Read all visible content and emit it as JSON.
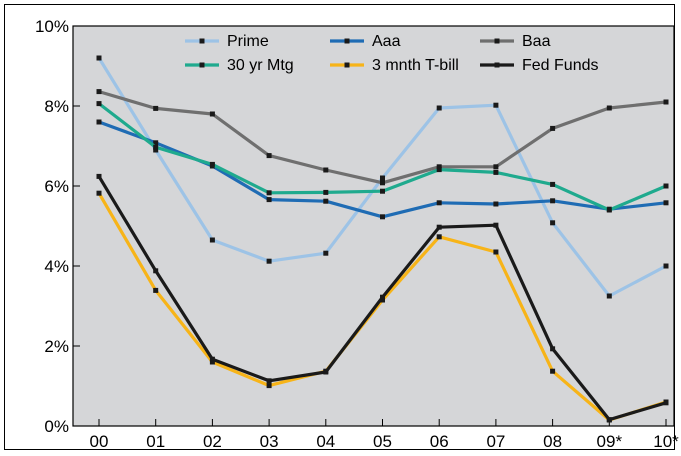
{
  "chart_data": {
    "type": "line",
    "title": "",
    "xlabel": "",
    "ylabel": "",
    "categories": [
      "00",
      "01",
      "02",
      "03",
      "04",
      "05",
      "06",
      "07",
      "08",
      "09*",
      "10*"
    ],
    "y_ticks": [
      "0%",
      "2%",
      "4%",
      "6%",
      "8%",
      "10%"
    ],
    "ylim": [
      0,
      10
    ],
    "grid": false,
    "legend_position": "top",
    "series": [
      {
        "name": "Prime",
        "color": "#9dc3e6",
        "values": [
          9.2,
          6.9,
          4.65,
          4.12,
          4.32,
          6.2,
          7.95,
          8.02,
          5.08,
          3.25,
          4.0
        ]
      },
      {
        "name": "Aaa",
        "color": "#1f6cb4",
        "values": [
          7.6,
          7.08,
          6.5,
          5.66,
          5.62,
          5.23,
          5.58,
          5.55,
          5.63,
          5.42,
          5.58
        ]
      },
      {
        "name": "Baa",
        "color": "#6f6f6f",
        "values": [
          8.36,
          7.94,
          7.8,
          6.76,
          6.4,
          6.08,
          6.48,
          6.48,
          7.44,
          7.95,
          8.1
        ]
      },
      {
        "name": "30 yr Mtg",
        "color": "#1faa8e",
        "values": [
          8.06,
          6.97,
          6.54,
          5.83,
          5.84,
          5.87,
          6.41,
          6.34,
          6.04,
          5.4,
          6.0
        ]
      },
      {
        "name": "3 mnth T-bill",
        "color": "#f7b418",
        "values": [
          5.82,
          3.39,
          1.6,
          1.01,
          1.37,
          3.15,
          4.73,
          4.35,
          1.37,
          0.15,
          0.6
        ]
      },
      {
        "name": "Fed Funds",
        "color": "#1a1a1a",
        "values": [
          6.24,
          3.88,
          1.67,
          1.13,
          1.35,
          3.22,
          4.97,
          5.02,
          1.93,
          0.16,
          0.58
        ]
      }
    ]
  }
}
